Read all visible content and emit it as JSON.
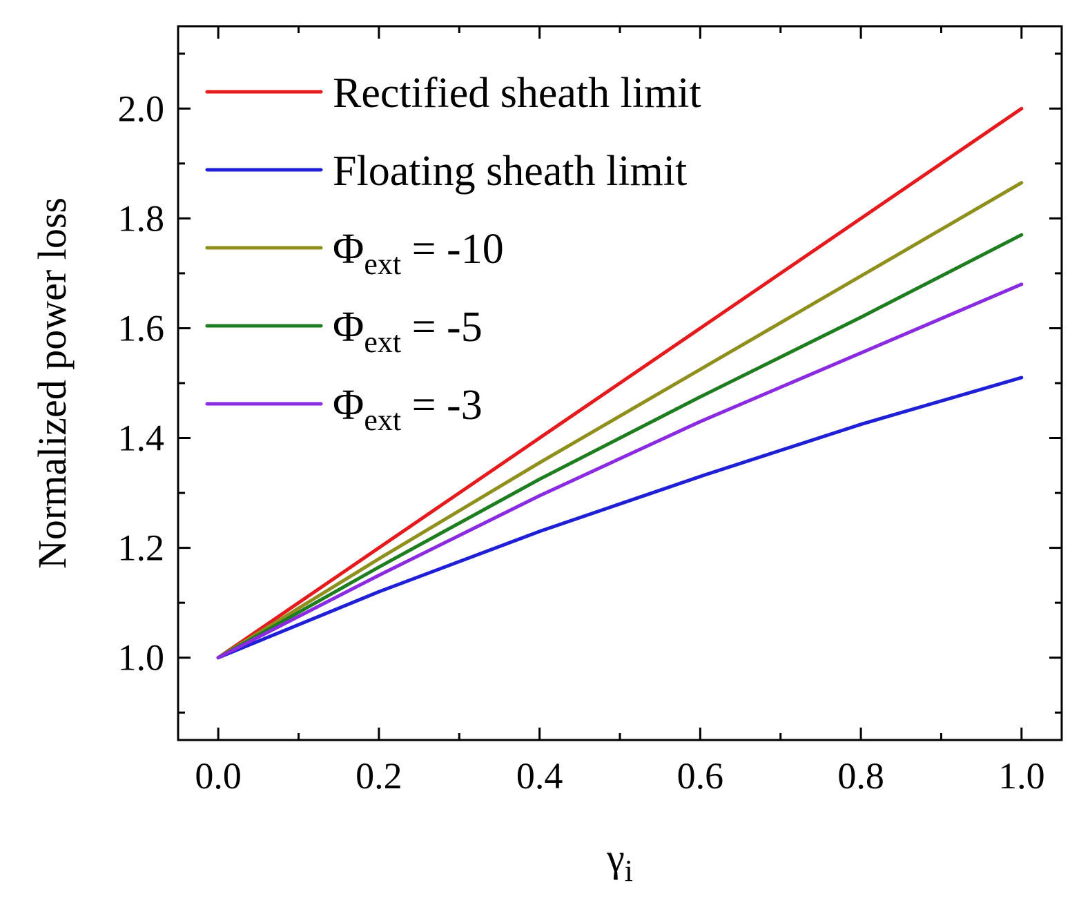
{
  "chart_data": {
    "type": "line",
    "xlabel": "γ",
    "xlabel_sub": "i",
    "ylabel": "Normalized power loss",
    "xlim": [
      -0.05,
      1.05
    ],
    "ylim": [
      0.85,
      2.15
    ],
    "xticks": [
      0.0,
      0.2,
      0.4,
      0.6,
      0.8,
      1.0
    ],
    "xtick_labels": [
      "0.0",
      "0.2",
      "0.4",
      "0.6",
      "0.8",
      "1.0"
    ],
    "xticks_minor": [
      0.1,
      0.3,
      0.5,
      0.7,
      0.9
    ],
    "yticks": [
      1.0,
      1.2,
      1.4,
      1.6,
      1.8,
      2.0
    ],
    "ytick_labels": [
      "1.0",
      "1.2",
      "1.4",
      "1.6",
      "1.8",
      "2.0"
    ],
    "yticks_minor": [
      0.9,
      1.1,
      1.3,
      1.5,
      1.7,
      1.9,
      2.1
    ],
    "grid": false,
    "legend_position": "top-left",
    "series": [
      {
        "name": "Rectified sheath limit",
        "color": "#e41a1c",
        "x": [
          0.0,
          0.2,
          0.4,
          0.6,
          0.8,
          1.0
        ],
        "y": [
          1.0,
          1.2,
          1.4,
          1.6,
          1.8,
          2.0
        ]
      },
      {
        "name": "Floating sheath limit",
        "color": "#1f1fd6",
        "x": [
          0.0,
          0.2,
          0.4,
          0.6,
          0.8,
          1.0
        ],
        "y": [
          1.0,
          1.12,
          1.23,
          1.33,
          1.425,
          1.51
        ]
      },
      {
        "name": "Φ",
        "name_sub": "ext",
        "name_suffix": " = -10",
        "color": "#8f8f1e",
        "x": [
          0.0,
          0.2,
          0.4,
          0.6,
          0.8,
          1.0
        ],
        "y": [
          1.0,
          1.18,
          1.355,
          1.525,
          1.695,
          1.865
        ]
      },
      {
        "name": "Φ",
        "name_sub": "ext",
        "name_suffix": " = -5",
        "color": "#1e7d1e",
        "x": [
          0.0,
          0.2,
          0.4,
          0.6,
          0.8,
          1.0
        ],
        "y": [
          1.0,
          1.165,
          1.325,
          1.475,
          1.62,
          1.77
        ]
      },
      {
        "name": "Φ",
        "name_sub": "ext",
        "name_suffix": " = -3",
        "color": "#8a2be2",
        "x": [
          0.0,
          0.2,
          0.4,
          0.6,
          0.8,
          1.0
        ],
        "y": [
          1.0,
          1.15,
          1.295,
          1.43,
          1.555,
          1.68
        ]
      }
    ]
  }
}
